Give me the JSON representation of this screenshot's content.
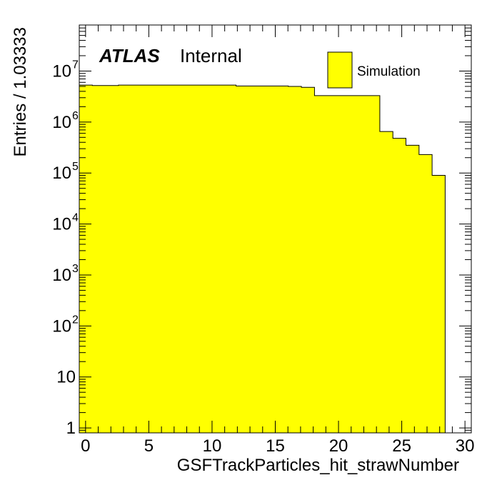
{
  "chart_data": {
    "type": "bar",
    "xlabel": "GSFTrackParticles_hit_strawNumber",
    "ylabel": "Entries / 1.03333",
    "xlim": [
      -0.5,
      30.5
    ],
    "ylim": [
      0.8,
      80000000
    ],
    "yscale": "log",
    "bin_width": 1.03333,
    "x_ticks": [
      0,
      5,
      10,
      15,
      20,
      25,
      30
    ],
    "y_ticks": [
      {
        "value": 1,
        "label": "1"
      },
      {
        "value": 10,
        "label": "10"
      },
      {
        "value": 100,
        "label": "10",
        "exp": "2"
      },
      {
        "value": 1000,
        "label": "10",
        "exp": "3"
      },
      {
        "value": 10000,
        "label": "10",
        "exp": "4"
      },
      {
        "value": 100000,
        "label": "10",
        "exp": "5"
      },
      {
        "value": 1000000,
        "label": "10",
        "exp": "6"
      },
      {
        "value": 10000000,
        "label": "10",
        "exp": "7"
      }
    ],
    "series": [
      {
        "name": "Simulation",
        "bin_edges": [
          -0.5,
          0.533,
          1.567,
          2.6,
          3.633,
          4.667,
          5.7,
          6.733,
          7.767,
          8.8,
          9.833,
          10.867,
          11.9,
          12.933,
          13.967,
          15.0,
          16.033,
          17.067,
          18.1,
          19.133,
          20.167,
          21.2,
          22.233,
          23.267,
          24.3,
          25.333,
          26.367,
          27.4,
          28.433,
          29.467,
          30.5
        ],
        "values": [
          5300000,
          5200000,
          5200000,
          5300000,
          5300000,
          5300000,
          5300000,
          5300000,
          5300000,
          5300000,
          5300000,
          5300000,
          5100000,
          5100000,
          5100000,
          5100000,
          5000000,
          4800000,
          3300000,
          3300000,
          3300000,
          3300000,
          3300000,
          650000,
          480000,
          350000,
          230000,
          90000,
          0,
          0
        ],
        "color": "#ffff00"
      }
    ],
    "legend": {
      "position": "top-right",
      "label": "Simulation"
    },
    "grid": false
  },
  "labels": {
    "experiment": "ATLAS",
    "status": "Internal"
  }
}
